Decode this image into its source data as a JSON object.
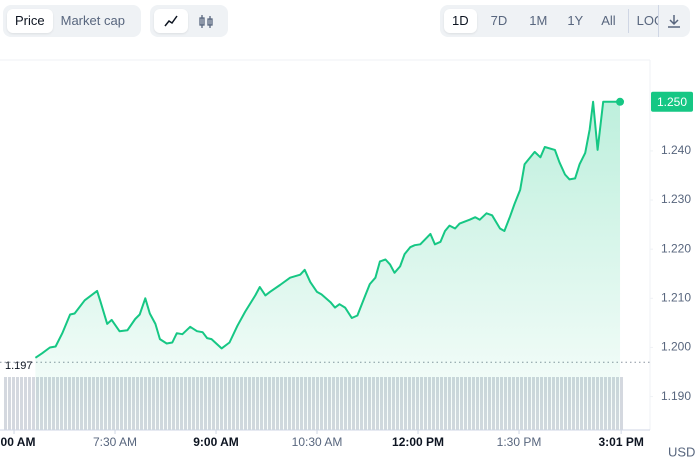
{
  "toolbar": {
    "type_tabs": [
      "Price",
      "Market cap"
    ],
    "ranges": [
      "1D",
      "7D",
      "1M",
      "1Y",
      "All",
      "LOG"
    ]
  },
  "chart_data": {
    "type": "line",
    "color": "#16c784",
    "unit_label": "USD",
    "x": [
      379,
      385,
      392,
      397,
      403,
      410,
      414,
      423,
      434,
      437,
      443,
      447,
      454,
      461,
      468,
      472,
      477,
      481,
      486,
      490,
      496,
      501,
      505,
      510,
      517,
      523,
      528,
      532,
      536,
      545,
      552,
      559,
      566,
      575,
      579,
      584,
      588,
      597,
      606,
      615,
      619,
      624,
      630,
      634,
      642,
      646,
      650,
      655,
      661,
      666,
      673,
      677,
      682,
      686,
      691,
      695,
      699,
      704,
      708,
      713,
      717,
      722,
      731,
      735,
      740,
      744,
      748,
      753,
      757,
      766,
      771,
      775,
      781,
      786,
      793,
      797,
      802,
      806,
      811,
      815,
      820,
      824,
      829,
      833,
      842,
      846,
      851,
      855,
      860,
      864,
      869,
      873,
      876,
      880,
      885,
      895,
      900
    ],
    "values": [
      1.1979,
      1.1988,
      1.2,
      1.2002,
      1.2029,
      1.2067,
      1.2069,
      1.2096,
      1.2115,
      1.2094,
      1.2048,
      1.2056,
      1.2033,
      1.2035,
      1.2058,
      1.2067,
      1.21,
      1.2069,
      1.2048,
      1.2017,
      1.2008,
      1.201,
      1.2029,
      1.2027,
      1.2042,
      1.2033,
      1.2031,
      1.2019,
      1.2017,
      1.1998,
      1.201,
      1.2044,
      1.2073,
      1.2106,
      1.2123,
      1.2106,
      1.2113,
      1.2127,
      1.2142,
      1.2148,
      1.2158,
      1.2133,
      1.2113,
      1.2108,
      1.2092,
      1.2081,
      1.2088,
      1.2081,
      1.206,
      1.2065,
      1.2106,
      1.2129,
      1.2142,
      1.2175,
      1.2179,
      1.2169,
      1.2152,
      1.2165,
      1.219,
      1.2204,
      1.2208,
      1.221,
      1.2231,
      1.221,
      1.2215,
      1.2237,
      1.2248,
      1.2242,
      1.2252,
      1.226,
      1.2265,
      1.226,
      1.2273,
      1.2269,
      1.2242,
      1.2237,
      1.2267,
      1.2292,
      1.2321,
      1.2373,
      1.2387,
      1.2398,
      1.2387,
      1.2408,
      1.2402,
      1.2377,
      1.2352,
      1.2342,
      1.2344,
      1.2373,
      1.2396,
      1.2444,
      1.25,
      1.2402,
      1.25,
      1.25,
      1.25
    ],
    "xlim": [
      347.5,
      926.7
    ],
    "xticks": [
      {
        "value": 360,
        "label": "00 AM",
        "bold": true
      },
      {
        "value": 450,
        "label": "7:30 AM"
      },
      {
        "value": 540,
        "label": "9:00 AM",
        "bold": true
      },
      {
        "value": 630,
        "label": "10:30 AM"
      },
      {
        "value": 720,
        "label": "12:00 PM",
        "bold": true
      },
      {
        "value": 810,
        "label": "1:30 PM"
      },
      {
        "value": 901,
        "label": "3:01 PM",
        "bold": true
      }
    ],
    "ylim": [
      1.1832,
      1.2585
    ],
    "yticks": [
      {
        "value": 1.19,
        "label": "1.190"
      },
      {
        "value": 1.2,
        "label": "1.200"
      },
      {
        "value": 1.21,
        "label": "1.210"
      },
      {
        "value": 1.22,
        "label": "1.220"
      },
      {
        "value": 1.23,
        "label": "1.230"
      },
      {
        "value": 1.24,
        "label": "1.240"
      }
    ],
    "last_price": {
      "value": 1.25,
      "label": "1.250"
    },
    "reference_value": 1.197
  }
}
